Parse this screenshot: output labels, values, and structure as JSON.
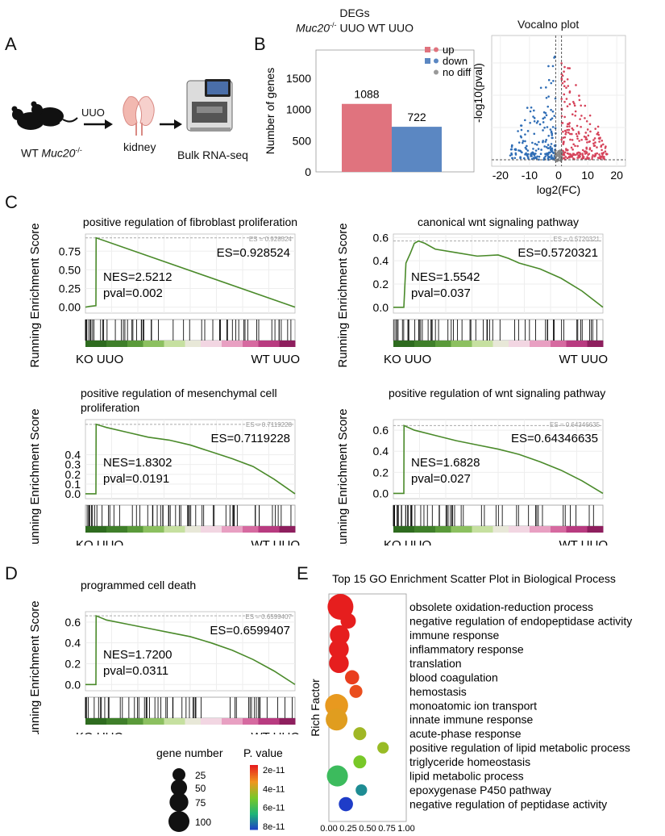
{
  "panel_labels": [
    "A",
    "B",
    "C",
    "D",
    "E"
  ],
  "panelA": {
    "mouse_label_prefix": "WT",
    "mouse_label_gene": "Muc20",
    "mouse_label_sup": "-/-",
    "arrow1_label": "UUO",
    "kidney_label": "kidney",
    "rnaseq_label": "Bulk RNA-seq"
  },
  "colors": {
    "up": "#e0737e",
    "down": "#5b87c2",
    "nodiff": "#999999",
    "gsea_line": "#4a8a2a"
  },
  "chart_data": [
    {
      "id": "degs_bar",
      "type": "bar",
      "title_line1": "DEGs",
      "title_gene": "Muc20",
      "title_sup": "-/-",
      "title_rest": " UUO WT UUO",
      "categories": [
        "up",
        "down"
      ],
      "values": [
        1088,
        722
      ],
      "value_labels": [
        "1088",
        "722"
      ],
      "ylabel": "Number of genes",
      "yticks": [
        0,
        500,
        1000,
        1500
      ],
      "ytick_labels": [
        "0",
        "500",
        "1000",
        "1500"
      ],
      "ylim": [
        0,
        1950
      ],
      "legend": [
        "up",
        "down",
        "no diff"
      ]
    },
    {
      "id": "volcano",
      "type": "scatter",
      "title": "Vocalno plot",
      "xlabel": "log2(FC)",
      "ylabel": "-log10(pval)",
      "xticks": [
        -20,
        -10,
        0,
        10,
        20
      ],
      "xtick_labels": [
        "-20",
        "-10",
        "0",
        "10",
        "20"
      ],
      "xlim": [
        -23,
        23
      ]
    },
    {
      "id": "gsea1",
      "type": "line",
      "title": "positive regulation of fibroblast proliferation",
      "ylabel": "Running Enrichment Score",
      "yticks": [
        0.0,
        0.25,
        0.5,
        0.75
      ],
      "ytick_labels": [
        "0.00",
        "0.25",
        "0.50",
        "0.75"
      ],
      "ylim": [
        -0.08,
        0.98
      ],
      "x": [
        0,
        0.02,
        0.05,
        0.051,
        1.0
      ],
      "y": [
        0,
        0.01,
        0.02,
        0.928524,
        0.0
      ],
      "es_small": "ES = 0.928524",
      "es": "ES=0.928524",
      "nes": "NES=2.5212",
      "pval": "pval=0.002",
      "left_label": "KO UUO",
      "right_label": "WT UUO"
    },
    {
      "id": "gsea2",
      "type": "line",
      "title": "canonical wnt signaling pathway",
      "ylabel": "Running Enrichment Score",
      "yticks": [
        0.0,
        0.2,
        0.4,
        0.6
      ],
      "ytick_labels": [
        "0.0",
        "0.2",
        "0.4",
        "0.6"
      ],
      "ylim": [
        -0.05,
        0.63
      ],
      "x": [
        0,
        0.05,
        0.06,
        0.08,
        0.1,
        0.12,
        0.15,
        0.2,
        0.3,
        0.4,
        0.5,
        0.55,
        0.6,
        0.7,
        0.8,
        0.9,
        1.0
      ],
      "y": [
        0,
        0.0,
        0.38,
        0.46,
        0.55,
        0.57,
        0.55,
        0.5,
        0.47,
        0.44,
        0.45,
        0.42,
        0.38,
        0.33,
        0.25,
        0.14,
        0.0
      ],
      "es_small": "ES = 0.5720321",
      "es": "ES=0.5720321",
      "nes": "NES=1.5542",
      "pval": "pval=0.037",
      "left_label": "KO UUO",
      "right_label": "WT UUO"
    },
    {
      "id": "gsea3",
      "type": "line",
      "title": "positive regulation of mesenchymal cell proliferation",
      "ylabel": "Running Enrichment Score",
      "yticks": [
        0.0,
        0.1,
        0.2,
        0.3,
        0.4
      ],
      "ytick_labels": [
        "0.0",
        "0.1",
        "0.2",
        "0.3",
        "0.4"
      ],
      "ylim": [
        -0.05,
        0.76
      ],
      "x": [
        0,
        0.05,
        0.051,
        0.1,
        0.2,
        0.3,
        0.4,
        0.5,
        0.6,
        0.7,
        0.8,
        0.9,
        1.0
      ],
      "y": [
        0,
        0.0,
        0.7119228,
        0.68,
        0.63,
        0.58,
        0.55,
        0.5,
        0.43,
        0.36,
        0.28,
        0.15,
        0.0
      ],
      "es_small": "ES = 0.7119228",
      "es": "ES=0.7119228",
      "nes": "NES=1.8302",
      "pval": "pval=0.0191",
      "left_label": "KO UUO",
      "right_label": "WT UUO"
    },
    {
      "id": "gsea4",
      "type": "line",
      "title": "positive regulation of wnt signaling pathway",
      "ylabel": "Running Enrichment Score",
      "yticks": [
        0.0,
        0.2,
        0.4,
        0.6
      ],
      "ytick_labels": [
        "0.0",
        "0.2",
        "0.4",
        "0.6"
      ],
      "ylim": [
        -0.05,
        0.7
      ],
      "x": [
        0,
        0.05,
        0.051,
        0.1,
        0.2,
        0.3,
        0.4,
        0.5,
        0.6,
        0.7,
        0.8,
        0.9,
        1.0
      ],
      "y": [
        0,
        0.0,
        0.64346635,
        0.6,
        0.55,
        0.5,
        0.46,
        0.42,
        0.37,
        0.3,
        0.22,
        0.12,
        0.0
      ],
      "es_small": "ES = 0.64346635",
      "es": "ES=0.64346635",
      "nes": "NES=1.6828",
      "pval": "pval=0.027",
      "left_label": "KO UUO",
      "right_label": "WT UUO"
    },
    {
      "id": "gsea5",
      "type": "line",
      "title": "programmed cell death",
      "ylabel": "Running Enrichment Score",
      "yticks": [
        0.0,
        0.2,
        0.4,
        0.6
      ],
      "ytick_labels": [
        "0.0",
        "0.2",
        "0.4",
        "0.6"
      ],
      "ylim": [
        -0.06,
        0.7
      ],
      "x": [
        0,
        0.05,
        0.051,
        0.1,
        0.2,
        0.3,
        0.4,
        0.5,
        0.6,
        0.7,
        0.8,
        0.9,
        1.0
      ],
      "y": [
        0,
        0.0,
        0.6599407,
        0.62,
        0.58,
        0.54,
        0.5,
        0.46,
        0.4,
        0.33,
        0.24,
        0.13,
        0.0
      ],
      "es_small": "ES = 0.6599407",
      "es": "ES=0.6599407",
      "nes": "NES=1.7200",
      "pval": "pval=0.0311",
      "left_label": "KO UUO",
      "right_label": "WT UUO"
    },
    {
      "id": "go_scatter",
      "type": "scatter",
      "title": "Top 15 GO Enrichment Scatter Plot in Biological Process",
      "ylabel": "Rich Factor",
      "xtick_labels": [
        "0.00",
        "0.25",
        "0.50",
        "0.75",
        "1.00"
      ],
      "xlim": [
        0,
        1
      ],
      "terms": [
        "obsolete oxidation-reduction process",
        "negative regulation of endopeptidase activity",
        "immune response",
        "inflammatory response",
        "translation",
        "blood coagulation",
        "hemostasis",
        "monoatomic ion transport",
        "innate immune response",
        "acute-phase response",
        "positive regulation of lipid metabolic process",
        "triglyceride homeostasis",
        "lipid metabolic process",
        "epoxygenase P450 pathway",
        "negative regulation of peptidase activity"
      ],
      "rich_factor": [
        0.15,
        0.25,
        0.14,
        0.13,
        0.13,
        0.3,
        0.35,
        0.1,
        0.1,
        0.4,
        0.7,
        0.4,
        0.11,
        0.42,
        0.22
      ],
      "gene_number": [
        100,
        25,
        50,
        50,
        50,
        20,
        15,
        75,
        65,
        15,
        10,
        15,
        60,
        10,
        20
      ],
      "p_value": [
        2e-11,
        2e-11,
        2e-11,
        2e-11,
        2e-11,
        2.4e-11,
        2.6e-11,
        3.6e-11,
        3.7e-11,
        4.5e-11,
        4.6e-11,
        5e-11,
        6e-11,
        7e-11,
        8e-11
      ],
      "size_legend_title": "gene number",
      "size_legend": [
        25,
        50,
        75,
        100
      ],
      "size_legend_labels": [
        "25",
        "50",
        "75",
        "100"
      ],
      "color_legend_title": "P. value",
      "color_legend_labels": [
        "2e-11",
        "4e-11",
        "6e-11",
        "8e-11"
      ]
    }
  ]
}
